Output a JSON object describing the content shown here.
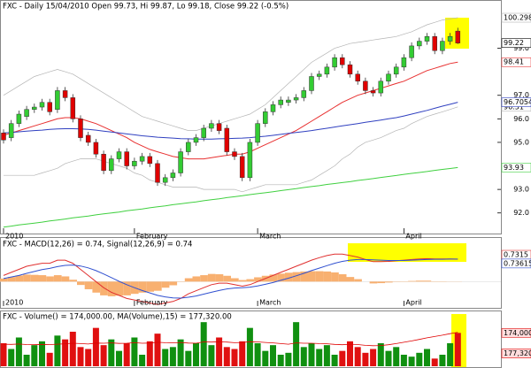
{
  "chart_data": [
    {
      "type": "candlestick",
      "title": "FXC - Daily 15/04/2010 Open 99.73, Hi 99.87, Lo 99.18, Close 99.22 (-0.5%)",
      "ylim": [
        91.2,
        100.6
      ],
      "yticks": [
        {
          "value": 92,
          "label": "92.0"
        },
        {
          "value": 93,
          "label": "93.0"
        },
        {
          "value": 95,
          "label": "95.0"
        },
        {
          "value": 96,
          "label": "96.0"
        },
        {
          "value": 97,
          "label": "97.0"
        },
        {
          "value": 99,
          "label": "99.0"
        }
      ],
      "xticks": [
        {
          "value": 0,
          "label": "2010"
        },
        {
          "value": 17,
          "label": "February"
        },
        {
          "value": 33,
          "label": "March"
        },
        {
          "value": 52,
          "label": "April"
        }
      ],
      "up_color": "#33cc33",
      "down_color": "#e00000",
      "open": [
        95.4,
        95.2,
        95.8,
        96.1,
        96.4,
        96.5,
        96.7,
        96.4,
        97.2,
        96.9,
        96.0,
        95.3,
        95.0,
        94.5,
        93.8,
        94.3,
        94.6,
        94.0,
        94.2,
        94.4,
        94.1,
        93.3,
        93.5,
        93.7,
        94.6,
        95.0,
        95.2,
        95.6,
        95.8,
        95.6,
        94.6,
        94.4,
        93.5,
        95.0,
        95.8,
        96.3,
        96.6,
        96.7,
        96.8,
        96.9,
        97.2,
        97.8,
        97.9,
        98.2,
        98.6,
        98.3,
        97.9,
        97.6,
        97.2,
        97.1,
        97.6,
        97.9,
        98.2,
        98.6,
        99.1,
        99.3,
        99.5,
        98.9,
        99.3,
        99.73
      ],
      "high": [
        95.55,
        95.95,
        96.35,
        96.55,
        96.65,
        96.85,
        96.85,
        97.35,
        97.35,
        97.05,
        96.15,
        95.45,
        95.15,
        94.65,
        94.45,
        94.75,
        94.75,
        94.35,
        94.55,
        94.55,
        94.25,
        93.65,
        93.85,
        94.75,
        95.15,
        95.35,
        95.75,
        95.95,
        95.95,
        95.75,
        94.75,
        94.55,
        95.15,
        95.95,
        96.45,
        96.75,
        96.95,
        96.95,
        97.05,
        97.35,
        97.95,
        98.05,
        98.35,
        98.75,
        98.75,
        98.45,
        98.05,
        97.75,
        97.35,
        97.75,
        98.05,
        98.35,
        98.75,
        99.25,
        99.45,
        99.65,
        99.65,
        99.45,
        99.65,
        99.87
      ],
      "low": [
        94.95,
        95.05,
        95.65,
        95.95,
        96.25,
        96.35,
        96.15,
        96.25,
        96.75,
        95.85,
        95.05,
        94.85,
        94.35,
        93.65,
        93.65,
        94.15,
        93.85,
        93.85,
        94.05,
        93.95,
        93.15,
        93.15,
        93.35,
        93.55,
        94.45,
        94.85,
        95.05,
        95.45,
        95.35,
        94.45,
        94.25,
        93.35,
        93.35,
        94.85,
        95.65,
        96.15,
        96.45,
        96.55,
        96.65,
        96.75,
        97.05,
        97.65,
        97.75,
        98.05,
        98.15,
        97.75,
        97.45,
        97.05,
        96.95,
        96.95,
        97.45,
        97.75,
        98.05,
        98.45,
        98.95,
        99.15,
        98.75,
        98.75,
        99.15,
        99.18
      ],
      "close": [
        95.1,
        95.8,
        96.2,
        96.4,
        96.5,
        96.7,
        96.3,
        97.2,
        96.9,
        96.0,
        95.2,
        95.0,
        94.5,
        93.8,
        94.3,
        94.6,
        94.0,
        94.2,
        94.4,
        94.1,
        93.3,
        93.5,
        93.7,
        94.6,
        95.0,
        95.2,
        95.6,
        95.8,
        95.5,
        94.6,
        94.4,
        93.5,
        95.0,
        95.8,
        96.3,
        96.6,
        96.8,
        96.8,
        96.9,
        97.2,
        97.8,
        97.9,
        98.2,
        98.6,
        98.3,
        97.9,
        97.6,
        97.2,
        97.1,
        97.6,
        97.9,
        98.2,
        98.6,
        99.1,
        99.3,
        99.5,
        98.9,
        99.3,
        99.5,
        99.22
      ],
      "series": [
        {
          "color": "#b4b4b4",
          "values": [
            97.0,
            97.2,
            97.4,
            97.6,
            97.8,
            97.9,
            98.0,
            98.1,
            98.0,
            97.9,
            97.7,
            97.5,
            97.3,
            97.1,
            96.9,
            96.7,
            96.5,
            96.3,
            96.1,
            96.0,
            95.9,
            95.8,
            95.7,
            95.6,
            95.5,
            95.5,
            95.6,
            95.7,
            95.8,
            95.9,
            96.0,
            96.1,
            96.2,
            96.4,
            96.6,
            96.9,
            97.2,
            97.5,
            97.8,
            98.1,
            98.4,
            98.6,
            98.8,
            99.0,
            99.1,
            99.2,
            99.25,
            99.3,
            99.35,
            99.4,
            99.45,
            99.5,
            99.6,
            99.7,
            99.85,
            100.0,
            100.1,
            100.2,
            100.25,
            100.298
          ]
        },
        {
          "color": "#b4b4b4",
          "values": [
            93.6,
            93.6,
            93.6,
            93.6,
            93.6,
            93.7,
            93.8,
            93.9,
            94.1,
            94.2,
            94.3,
            94.3,
            94.3,
            94.2,
            94.1,
            94.0,
            93.9,
            93.7,
            93.6,
            93.4,
            93.3,
            93.2,
            93.1,
            93.1,
            93.1,
            93.1,
            93.0,
            93.0,
            93.0,
            93.0,
            93.0,
            92.9,
            93.0,
            93.1,
            93.2,
            93.2,
            93.2,
            93.2,
            93.2,
            93.3,
            93.4,
            93.6,
            93.8,
            94.0,
            94.3,
            94.5,
            94.8,
            95.0,
            95.1,
            95.2,
            95.35,
            95.5,
            95.6,
            95.8,
            95.95,
            96.1,
            96.2,
            96.3,
            96.4,
            96.51
          ]
        },
        {
          "color": "#e83030",
          "values": [
            95.3,
            95.4,
            95.5,
            95.6,
            95.7,
            95.8,
            95.9,
            96.0,
            96.05,
            96.05,
            96.0,
            95.9,
            95.8,
            95.65,
            95.5,
            95.35,
            95.2,
            95.0,
            94.85,
            94.7,
            94.6,
            94.5,
            94.4,
            94.35,
            94.3,
            94.3,
            94.3,
            94.35,
            94.4,
            94.45,
            94.5,
            94.5,
            94.6,
            94.75,
            94.9,
            95.05,
            95.2,
            95.35,
            95.5,
            95.7,
            95.9,
            96.1,
            96.3,
            96.5,
            96.7,
            96.85,
            97.0,
            97.1,
            97.2,
            97.3,
            97.4,
            97.5,
            97.6,
            97.75,
            97.9,
            98.05,
            98.15,
            98.25,
            98.35,
            98.41
          ]
        },
        {
          "color": "#3040c0",
          "values": [
            95.4,
            95.42,
            95.45,
            95.48,
            95.5,
            95.52,
            95.55,
            95.57,
            95.58,
            95.58,
            95.57,
            95.55,
            95.52,
            95.48,
            95.44,
            95.4,
            95.36,
            95.32,
            95.28,
            95.25,
            95.22,
            95.2,
            95.18,
            95.16,
            95.15,
            95.14,
            95.14,
            95.14,
            95.15,
            95.16,
            95.17,
            95.18,
            95.2,
            95.23,
            95.26,
            95.3,
            95.34,
            95.38,
            95.42,
            95.46,
            95.5,
            95.55,
            95.6,
            95.65,
            95.7,
            95.75,
            95.8,
            95.85,
            95.9,
            95.95,
            96.0,
            96.05,
            96.12,
            96.2,
            96.28,
            96.36,
            96.45,
            96.54,
            96.62,
            96.7054
          ]
        },
        {
          "color": "#40d040",
          "values": [
            91.4,
            91.44,
            91.49,
            91.53,
            91.57,
            91.61,
            91.66,
            91.7,
            91.74,
            91.79,
            91.83,
            91.87,
            91.92,
            91.96,
            92.0,
            92.04,
            92.09,
            92.13,
            92.17,
            92.22,
            92.26,
            92.3,
            92.35,
            92.39,
            92.43,
            92.47,
            92.52,
            92.56,
            92.6,
            92.65,
            92.69,
            92.73,
            92.78,
            92.82,
            92.86,
            92.9,
            92.95,
            92.99,
            93.03,
            93.08,
            93.12,
            93.16,
            93.21,
            93.25,
            93.29,
            93.33,
            93.38,
            93.42,
            93.46,
            93.51,
            93.55,
            93.59,
            93.64,
            93.68,
            93.72,
            93.76,
            93.81,
            93.85,
            93.89,
            93.93
          ]
        }
      ]
    },
    {
      "type": "macd",
      "title": "FXC - MACD(12,26) = 0.74, Signal(12,26,9) = 0.74",
      "ylim": [
        -0.8,
        1.05
      ],
      "histogram": {
        "color": "#f8b070",
        "values": [
          0.1,
          0.15,
          0.2,
          0.23,
          0.22,
          0.21,
          0.17,
          0.21,
          0.17,
          0.06,
          -0.11,
          -0.25,
          -0.36,
          -0.45,
          -0.48,
          -0.46,
          -0.45,
          -0.4,
          -0.36,
          -0.33,
          -0.3,
          -0.2,
          -0.12,
          -0.01,
          0.11,
          0.17,
          0.21,
          0.25,
          0.24,
          0.19,
          0.11,
          0.05,
          0.08,
          0.14,
          0.19,
          0.23,
          0.26,
          0.29,
          0.31,
          0.33,
          0.34,
          0.34,
          0.33,
          0.3,
          0.24,
          0.15,
          0.08,
          0.0,
          -0.06,
          -0.05,
          -0.03,
          -0.01,
          0.01,
          0.02,
          0.03,
          0.03,
          0.01,
          0.01,
          0.005,
          -0.005
        ]
      },
      "series": [
        {
          "color": "#e03030",
          "values": [
            0.2,
            0.3,
            0.4,
            0.5,
            0.55,
            0.6,
            0.6,
            0.7,
            0.7,
            0.6,
            0.4,
            0.2,
            0.0,
            -0.2,
            -0.35,
            -0.45,
            -0.55,
            -0.6,
            -0.65,
            -0.7,
            -0.75,
            -0.7,
            -0.65,
            -0.55,
            -0.4,
            -0.3,
            -0.2,
            -0.1,
            -0.05,
            -0.05,
            -0.1,
            -0.15,
            -0.1,
            0.0,
            0.1,
            0.2,
            0.3,
            0.4,
            0.5,
            0.6,
            0.7,
            0.78,
            0.85,
            0.9,
            0.9,
            0.85,
            0.8,
            0.72,
            0.65,
            0.65,
            0.66,
            0.68,
            0.7,
            0.72,
            0.74,
            0.75,
            0.74,
            0.74,
            0.74,
            0.7315
          ]
        },
        {
          "color": "#3050d0",
          "values": [
            0.1,
            0.15,
            0.2,
            0.27,
            0.33,
            0.39,
            0.43,
            0.49,
            0.53,
            0.54,
            0.51,
            0.45,
            0.36,
            0.25,
            0.13,
            0.01,
            -0.1,
            -0.2,
            -0.29,
            -0.37,
            -0.45,
            -0.5,
            -0.53,
            -0.54,
            -0.51,
            -0.47,
            -0.41,
            -0.35,
            -0.29,
            -0.24,
            -0.21,
            -0.2,
            -0.18,
            -0.14,
            -0.09,
            -0.03,
            0.04,
            0.11,
            0.19,
            0.27,
            0.36,
            0.44,
            0.52,
            0.6,
            0.66,
            0.7,
            0.72,
            0.72,
            0.71,
            0.7,
            0.69,
            0.69,
            0.69,
            0.7,
            0.71,
            0.72,
            0.73,
            0.73,
            0.735,
            0.736159
          ]
        }
      ]
    },
    {
      "type": "volume",
      "title": "FXC - Volume() = 174,000.00, MA(Volume),15) = 177,320.00",
      "ylim": [
        0,
        240000
      ],
      "up_color": "#109010",
      "down_color": "#e01010",
      "values": [
        120000,
        90000,
        150000,
        60000,
        110000,
        130000,
        70000,
        160000,
        140000,
        180000,
        100000,
        90000,
        200000,
        110000,
        140000,
        80000,
        120000,
        150000,
        60000,
        130000,
        170000,
        90000,
        100000,
        140000,
        80000,
        120000,
        230000,
        110000,
        150000,
        100000,
        90000,
        130000,
        200000,
        120000,
        80000,
        110000,
        60000,
        70000,
        230000,
        100000,
        120000,
        90000,
        110000,
        60000,
        80000,
        130000,
        100000,
        70000,
        90000,
        120000,
        80000,
        100000,
        60000,
        50000,
        70000,
        90000,
        40000,
        60000,
        120000,
        174000
      ],
      "value_labels": [
        null,
        null,
        null,
        null,
        null,
        null,
        null,
        null,
        null,
        null,
        null,
        null,
        null,
        null,
        null,
        null,
        null,
        null,
        null,
        null,
        null,
        null,
        null,
        null,
        null,
        null,
        null,
        null,
        null,
        null,
        null,
        null,
        null,
        null,
        null,
        null,
        null,
        null,
        null,
        null,
        null,
        null,
        null,
        null,
        null,
        null,
        null,
        null,
        null,
        null,
        null,
        null,
        null,
        null,
        null,
        null,
        null,
        null,
        null,
        "174,000"
      ],
      "ma": {
        "color": "#e00000",
        "values": [
          115000,
          114000,
          116000,
          113000,
          112000,
          114000,
          113000,
          115000,
          117000,
          120000,
          118000,
          116000,
          121000,
          120000,
          122000,
          119000,
          120000,
          123000,
          120000,
          121000,
          125000,
          123000,
          122000,
          124000,
          121000,
          120000,
          127000,
          126000,
          128000,
          126000,
          123000,
          124000,
          128000,
          127000,
          124000,
          122000,
          118000,
          115000,
          122000,
          120000,
          120000,
          118000,
          117000,
          114000,
          112000,
          115000,
          113000,
          109000,
          107000,
          108000,
          112000,
          118000,
          125000,
          132000,
          140000,
          148000,
          155000,
          162000,
          170000,
          177320
        ],
        "value_labels": [
          null,
          null,
          null,
          null,
          null,
          null,
          null,
          null,
          null,
          null,
          null,
          null,
          null,
          null,
          null,
          null,
          null,
          null,
          null,
          null,
          null,
          null,
          null,
          null,
          null,
          null,
          null,
          null,
          null,
          null,
          null,
          null,
          null,
          null,
          null,
          null,
          null,
          null,
          null,
          null,
          null,
          null,
          null,
          null,
          null,
          null,
          null,
          null,
          null,
          null,
          null,
          null,
          null,
          null,
          null,
          null,
          null,
          null,
          null,
          "177,320"
        ]
      }
    }
  ]
}
